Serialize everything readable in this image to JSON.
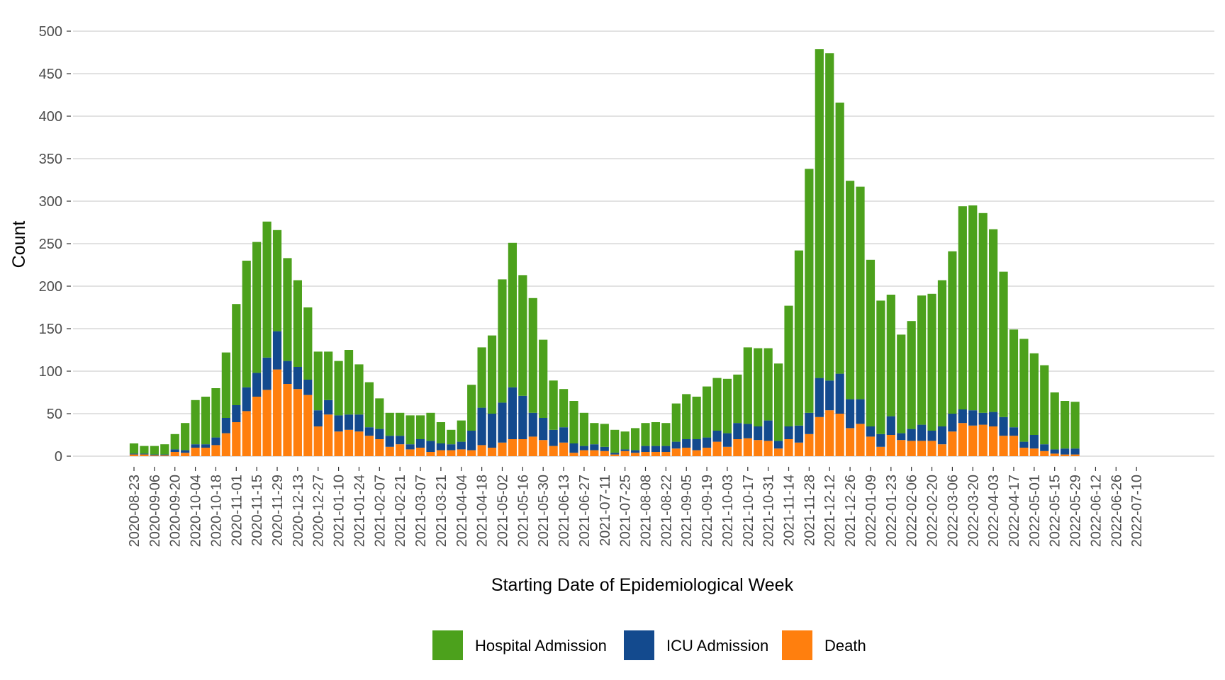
{
  "chart_data": {
    "type": "bar",
    "stacked": true,
    "title": "",
    "xlabel": "Starting Date of Epidemiological Week",
    "ylabel": "Count",
    "ylim": [
      0,
      500
    ],
    "y_ticks": [
      0,
      50,
      100,
      150,
      200,
      250,
      300,
      350,
      400,
      450,
      500
    ],
    "grid": true,
    "legend_position": "bottom",
    "x_tick_labels": [
      "2020-08-23",
      "2020-09-06",
      "2020-09-20",
      "2020-10-04",
      "2020-10-18",
      "2020-11-01",
      "2020-11-15",
      "2020-11-29",
      "2020-12-13",
      "2020-12-27",
      "2021-01-10",
      "2021-01-24",
      "2021-02-07",
      "2021-02-21",
      "2021-03-07",
      "2021-03-21",
      "2021-04-04",
      "2021-04-18",
      "2021-05-02",
      "2021-05-16",
      "2021-05-30",
      "2021-06-13",
      "2021-06-27",
      "2021-07-11",
      "2021-07-25",
      "2021-08-08",
      "2021-08-22",
      "2021-09-05",
      "2021-09-19",
      "2021-10-03",
      "2021-10-17",
      "2021-10-31",
      "2021-11-14",
      "2021-11-28",
      "2021-12-12",
      "2021-12-26",
      "2022-01-09",
      "2022-01-23",
      "2022-02-06",
      "2022-02-20",
      "2022-03-06",
      "2022-03-20",
      "2022-04-03",
      "2022-04-17",
      "2022-05-01",
      "2022-05-15",
      "2022-05-29",
      "2022-06-12",
      "2022-06-26",
      "2022-07-10"
    ],
    "series": [
      {
        "name": "Death",
        "color": "#FF7F0E",
        "values": [
          2,
          2,
          1,
          1,
          5,
          4,
          10,
          10,
          13,
          27,
          40,
          53,
          70,
          78,
          102,
          85,
          79,
          72,
          35,
          49,
          29,
          31,
          29,
          24,
          20,
          11,
          14,
          8,
          10,
          5,
          7,
          7,
          8,
          7,
          13,
          10,
          16,
          20,
          20,
          23,
          19,
          12,
          16,
          4,
          7,
          7,
          6,
          2,
          6,
          4,
          5,
          5,
          5,
          9,
          10,
          7,
          10,
          17,
          11,
          20,
          21,
          19,
          18,
          9,
          20,
          16,
          26,
          46,
          54,
          50,
          33,
          38,
          23,
          11,
          25,
          19,
          18,
          18,
          18,
          14,
          29,
          39,
          36,
          37,
          35,
          24,
          24,
          10,
          9,
          6,
          3,
          2,
          2
        ]
      },
      {
        "name": "ICU Admission",
        "color": "#134A8E",
        "values": [
          1,
          1,
          1,
          1,
          3,
          3,
          4,
          4,
          9,
          18,
          20,
          28,
          28,
          38,
          45,
          27,
          26,
          18,
          19,
          17,
          19,
          18,
          20,
          10,
          12,
          13,
          10,
          6,
          10,
          13,
          8,
          7,
          9,
          23,
          44,
          40,
          47,
          61,
          51,
          28,
          26,
          19,
          18,
          11,
          5,
          7,
          5,
          2,
          2,
          3,
          7,
          7,
          7,
          8,
          10,
          13,
          12,
          13,
          16,
          19,
          17,
          16,
          24,
          9,
          15,
          20,
          25,
          46,
          35,
          47,
          34,
          29,
          12,
          15,
          22,
          8,
          14,
          19,
          12,
          21,
          21,
          16,
          18,
          14,
          17,
          22,
          10,
          7,
          16,
          8,
          5,
          7,
          7
        ]
      },
      {
        "name": "Hospital Admission",
        "color": "#4CA11C",
        "values": [
          12,
          9,
          10,
          12,
          18,
          32,
          52,
          56,
          58,
          77,
          119,
          149,
          154,
          160,
          119,
          121,
          102,
          85,
          69,
          57,
          64,
          76,
          59,
          53,
          36,
          27,
          27,
          34,
          28,
          33,
          25,
          17,
          25,
          54,
          71,
          92,
          145,
          170,
          142,
          135,
          92,
          58,
          45,
          50,
          39,
          25,
          27,
          27,
          21,
          26,
          27,
          28,
          27,
          45,
          53,
          50,
          60,
          62,
          64,
          57,
          90,
          92,
          85,
          91,
          142,
          206,
          287,
          387,
          385,
          319,
          257,
          250,
          196,
          157,
          143,
          116,
          127,
          152,
          161,
          172,
          191,
          239,
          241,
          235,
          215,
          171,
          115,
          121,
          96,
          93,
          67,
          56,
          55
        ]
      }
    ]
  },
  "legend": {
    "items": [
      {
        "label": "Hospital Admission",
        "color": "#4CA11C"
      },
      {
        "label": "ICU Admission",
        "color": "#134A8E"
      },
      {
        "label": "Death",
        "color": "#FF7F0E"
      }
    ]
  }
}
